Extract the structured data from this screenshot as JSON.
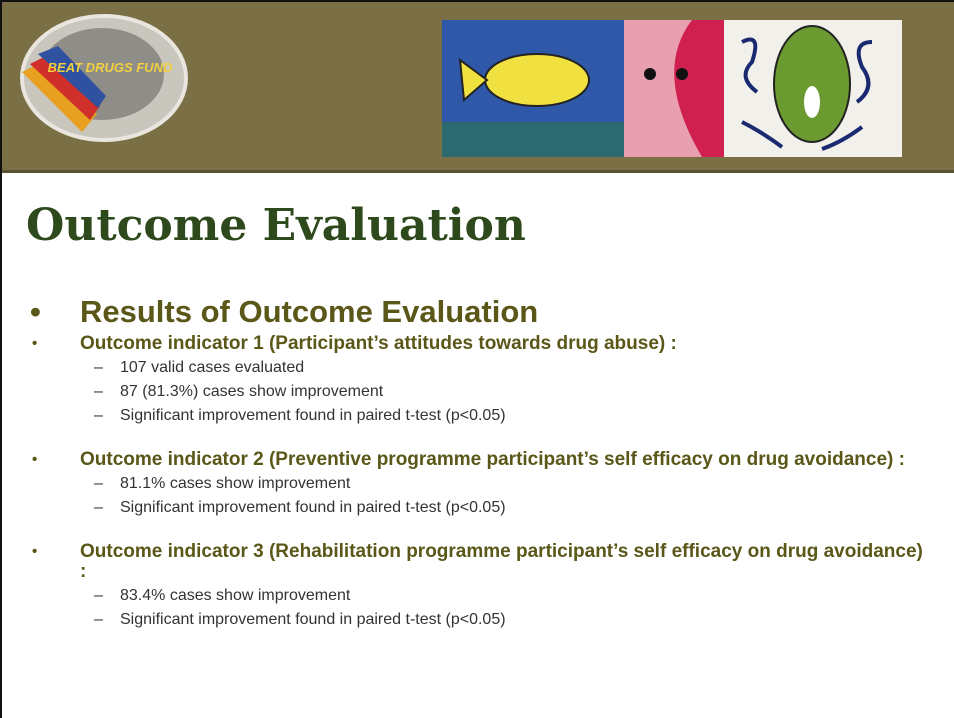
{
  "header": {
    "logo_text": "BEAT DRUGS FUND"
  },
  "title": "Outcome Evaluation",
  "heading": "Results of Outcome Evaluation",
  "indicators": [
    {
      "title": "Outcome indicator 1 (Participant’s attitudes towards drug abuse) :",
      "points": [
        "107 valid cases evaluated",
        "87 (81.3%) cases show improvement",
        "Significant improvement found in paired t-test (p<0.05)"
      ]
    },
    {
      "title": "Outcome indicator 2 (Preventive programme participant’s self efficacy on drug avoidance) :",
      "points": [
        "81.1% cases show improvement",
        "Significant improvement found in paired t-test (p<0.05)"
      ]
    },
    {
      "title": "Outcome indicator 3 (Rehabilitation programme participant’s self efficacy on drug avoidance) :",
      "points": [
        "83.4% cases show improvement",
        "Significant improvement found in paired t-test (p<0.05)"
      ]
    }
  ]
}
